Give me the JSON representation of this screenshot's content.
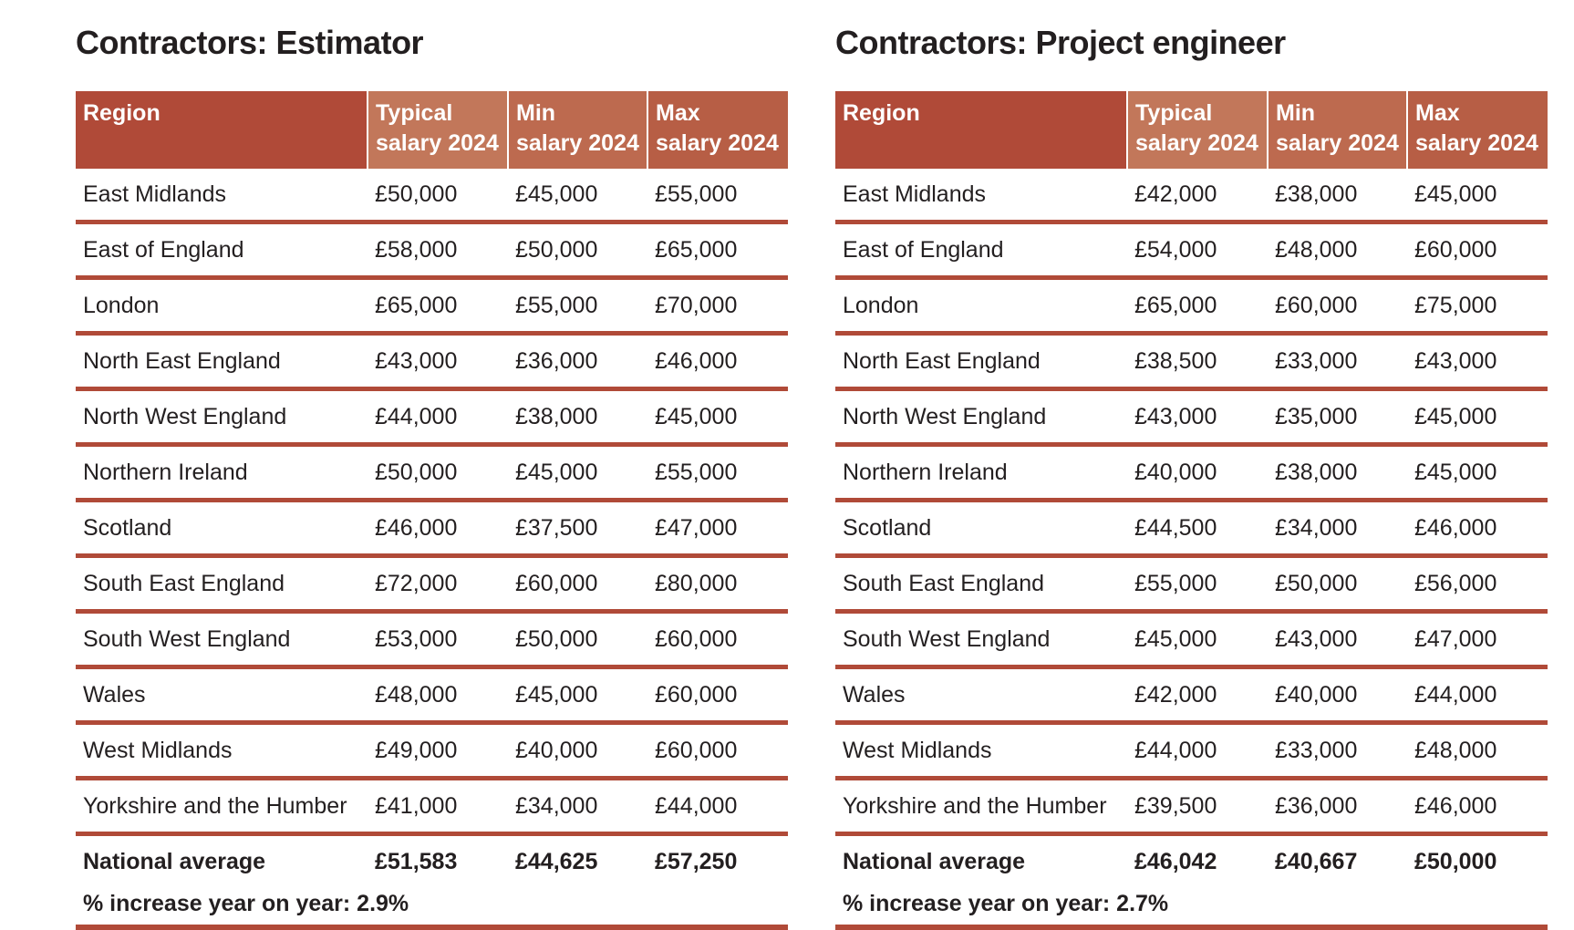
{
  "tables": [
    {
      "title": "Contractors: Estimator",
      "headers": {
        "region": "Region",
        "typical_1": "Typical",
        "typical_2": "salary 2024",
        "min_1": "Min",
        "min_2": "salary 2024",
        "max_1": "Max",
        "max_2": "salary 2024"
      },
      "rows": [
        {
          "region": "East Midlands",
          "typical": "£50,000",
          "min": "£45,000",
          "max": "£55,000"
        },
        {
          "region": "East of England",
          "typical": "£58,000",
          "min": "£50,000",
          "max": "£65,000"
        },
        {
          "region": "London",
          "typical": "£65,000",
          "min": "£55,000",
          "max": "£70,000"
        },
        {
          "region": "North East England",
          "typical": "£43,000",
          "min": "£36,000",
          "max": "£46,000"
        },
        {
          "region": "North West England",
          "typical": "£44,000",
          "min": "£38,000",
          "max": "£45,000"
        },
        {
          "region": "Northern Ireland",
          "typical": "£50,000",
          "min": "£45,000",
          "max": "£55,000"
        },
        {
          "region": "Scotland",
          "typical": "£46,000",
          "min": "£37,500",
          "max": "£47,000"
        },
        {
          "region": "South East England",
          "typical": "£72,000",
          "min": "£60,000",
          "max": "£80,000"
        },
        {
          "region": "South West England",
          "typical": "£53,000",
          "min": "£50,000",
          "max": "£60,000"
        },
        {
          "region": "Wales",
          "typical": "£48,000",
          "min": "£45,000",
          "max": "£60,000"
        },
        {
          "region": "West Midlands",
          "typical": "£49,000",
          "min": "£40,000",
          "max": "£60,000"
        },
        {
          "region": "Yorkshire and the Humber",
          "typical": "£41,000",
          "min": "£34,000",
          "max": "£44,000"
        }
      ],
      "national_average": {
        "label": "National average",
        "typical": "£51,583",
        "min": "£44,625",
        "max": "£57,250"
      },
      "increase": "% increase year on year: 2.9%"
    },
    {
      "title": "Contractors: Project engineer",
      "headers": {
        "region": "Region",
        "typical_1": "Typical",
        "typical_2": "salary 2024",
        "min_1": "Min",
        "min_2": "salary 2024",
        "max_1": "Max",
        "max_2": "salary 2024"
      },
      "rows": [
        {
          "region": "East Midlands",
          "typical": "£42,000",
          "min": "£38,000",
          "max": "£45,000"
        },
        {
          "region": "East of England",
          "typical": "£54,000",
          "min": "£48,000",
          "max": "£60,000"
        },
        {
          "region": "London",
          "typical": "£65,000",
          "min": "£60,000",
          "max": "£75,000"
        },
        {
          "region": "North East England",
          "typical": "£38,500",
          "min": "£33,000",
          "max": "£43,000"
        },
        {
          "region": "North West England",
          "typical": "£43,000",
          "min": "£35,000",
          "max": "£45,000"
        },
        {
          "region": "Northern Ireland",
          "typical": "£40,000",
          "min": "£38,000",
          "max": "£45,000"
        },
        {
          "region": "Scotland",
          "typical": "£44,500",
          "min": "£34,000",
          "max": "£46,000"
        },
        {
          "region": "South East England",
          "typical": "£55,000",
          "min": "£50,000",
          "max": "£56,000"
        },
        {
          "region": "South West England",
          "typical": "£45,000",
          "min": "£43,000",
          "max": "£47,000"
        },
        {
          "region": "Wales",
          "typical": "£42,000",
          "min": "£40,000",
          "max": "£44,000"
        },
        {
          "region": "West Midlands",
          "typical": "£44,000",
          "min": "£33,000",
          "max": "£48,000"
        },
        {
          "region": "Yorkshire and the Humber",
          "typical": "£39,500",
          "min": "£36,000",
          "max": "£46,000"
        }
      ],
      "national_average": {
        "label": "National average",
        "typical": "£46,042",
        "min": "£40,667",
        "max": "£50,000"
      },
      "increase": "% increase year on year: 2.7%"
    }
  ],
  "colors": {
    "rule": "#b04a38",
    "header_region": "#b04a38",
    "header_typical": "#c2775a",
    "header_min": "#bd6a4f",
    "header_max": "#b75e45"
  }
}
